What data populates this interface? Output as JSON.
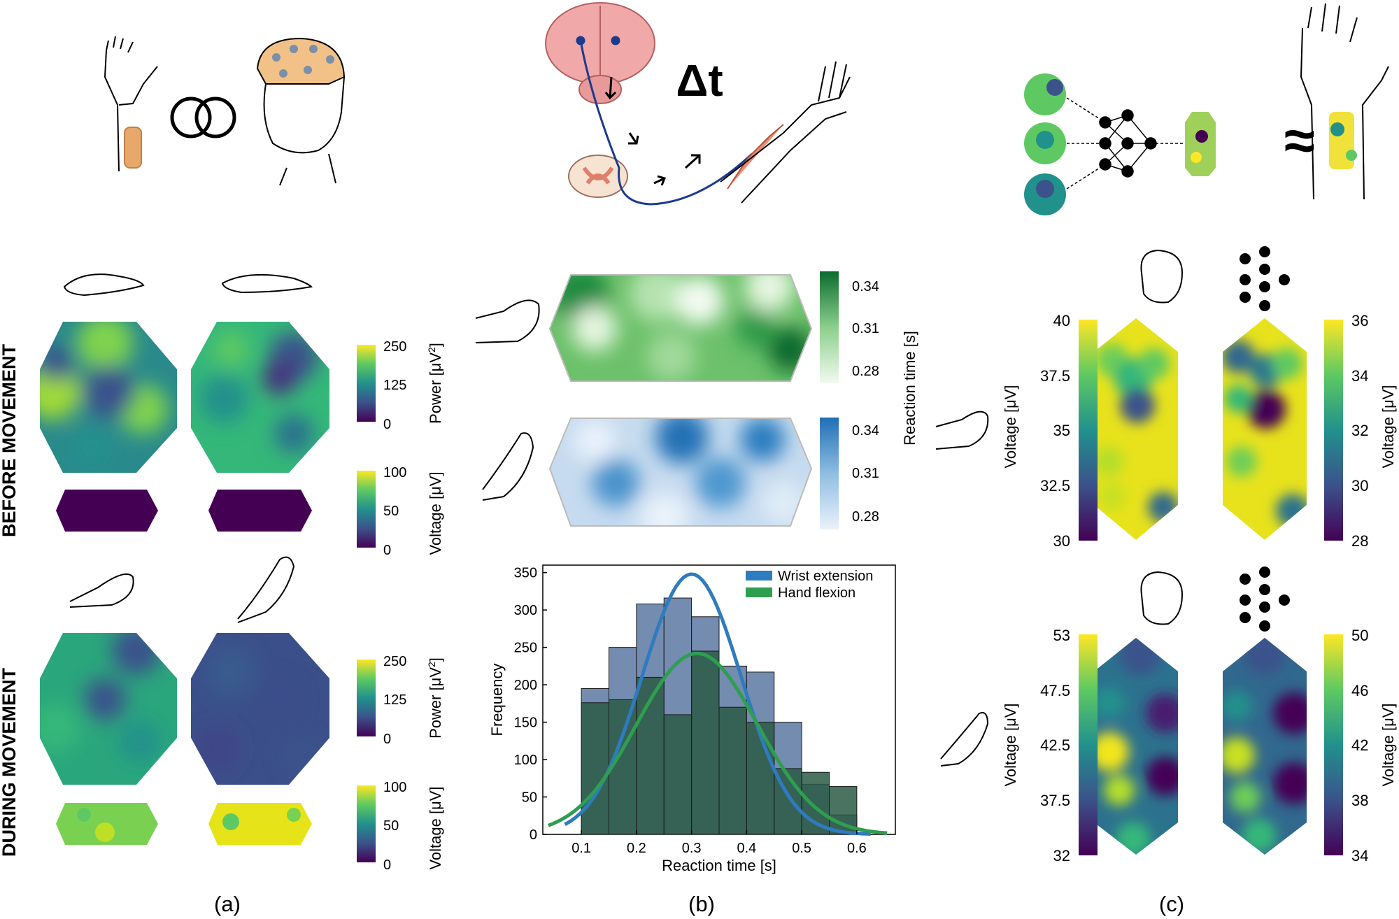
{
  "panel_labels": [
    "(a)",
    "(b)",
    "(c)"
  ],
  "delta_t": "Δt",
  "approx_symbol": "≈",
  "row_labels": {
    "before": "BEFORE MOVEMENT",
    "during": "DURING MOVEMENT"
  },
  "colorbars": {
    "power_before": {
      "title_prefix": "Power [μV",
      "title_sup": "2",
      "title_suffix": "]",
      "ticks": [
        "250",
        "125",
        "0"
      ]
    },
    "voltage_before": {
      "title": "Voltage [μV]",
      "ticks": [
        "100",
        "50",
        "0"
      ]
    },
    "power_during": {
      "title_prefix": "Power [μV",
      "title_sup": "2",
      "title_suffix": "]",
      "ticks": [
        "250",
        "125",
        "0"
      ]
    },
    "voltage_during": {
      "title": "Voltage [μV]",
      "ticks": [
        "100",
        "50",
        "0"
      ]
    },
    "reaction_green": {
      "ticks": [
        "0.34",
        "0.31",
        "0.28"
      ]
    },
    "reaction_blue": {
      "ticks": [
        "0.34",
        "0.31",
        "0.28"
      ]
    },
    "reaction_title": "Reaction time [s]",
    "c_top_left": {
      "title": "Voltage [μV]",
      "ticks": [
        "40",
        "37.5",
        "35",
        "32.5",
        "30"
      ]
    },
    "c_top_right": {
      "title": "Voltage [μV]",
      "ticks": [
        "36",
        "34",
        "32",
        "30",
        "28"
      ]
    },
    "c_bot_left": {
      "title": "Voltage [μV]",
      "ticks": [
        "53",
        "47.5",
        "42.5",
        "37.5",
        "32"
      ]
    },
    "c_bot_right": {
      "title": "Voltage [μV]",
      "ticks": [
        "50",
        "46",
        "42",
        "38",
        "34"
      ]
    }
  },
  "colors": {
    "viridis": [
      "#440154",
      "#3b528b",
      "#21918c",
      "#5ec962",
      "#fde725"
    ],
    "greens": [
      "#f2faf0",
      "#0b6b2e"
    ],
    "blues": [
      "#eaf2fb",
      "#1f6fb5"
    ],
    "wrist_line": "#2f7bbf",
    "flexion_line": "#2e9e4f",
    "wrist_bar": "#6c86ab",
    "flexion_bar": "#2b5a45"
  },
  "chart_data": {
    "type": "bar",
    "xlabel": "Reaction time [s]",
    "ylabel": "Frequency",
    "xlim": [
      0.03,
      0.67
    ],
    "ylim": [
      0,
      360
    ],
    "xticks": [
      "0.1",
      "0.2",
      "0.3",
      "0.4",
      "0.5",
      "0.6"
    ],
    "yticks": [
      "0",
      "50",
      "100",
      "150",
      "200",
      "250",
      "300",
      "350"
    ],
    "legend": "top-right",
    "bin_edges": [
      0.1,
      0.15,
      0.2,
      0.25,
      0.3,
      0.35,
      0.4,
      0.45,
      0.5,
      0.55,
      0.6
    ],
    "series": [
      {
        "name": "Wrist extension",
        "values": [
          195,
          250,
          308,
          316,
          291,
          225,
          217,
          150,
          67,
          26
        ]
      },
      {
        "name": "Hand flexion",
        "values": [
          176,
          180,
          210,
          160,
          245,
          170,
          150,
          88,
          83,
          64
        ]
      }
    ],
    "fits": [
      {
        "name": "Wrist extension",
        "mean": 0.3,
        "peak": 348,
        "sd": 0.09,
        "range": [
          0.07,
          0.625
        ]
      },
      {
        "name": "Hand flexion",
        "mean": 0.31,
        "peak": 242,
        "sd": 0.11,
        "range": [
          0.04,
          0.655
        ]
      }
    ]
  }
}
